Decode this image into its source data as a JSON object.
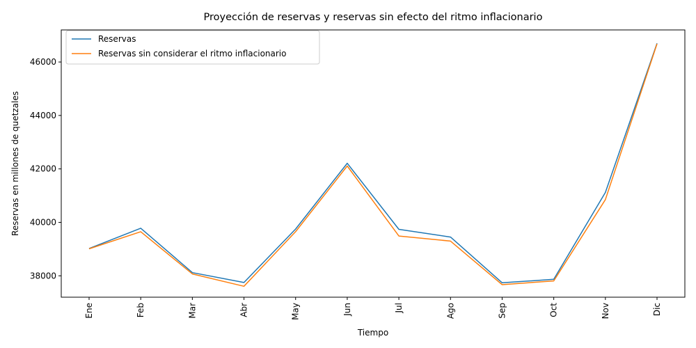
{
  "chart_data": {
    "type": "line",
    "title": "Proyección de reservas y reservas sin efecto del ritmo inflacionario",
    "xlabel": "Tiempo",
    "ylabel": "Reservas en millones de quetzales",
    "categories": [
      "Ene",
      "Feb",
      "Mar",
      "Abr",
      "May",
      "Jun",
      "Jul",
      "Ago",
      "Sep",
      "Oct",
      "Nov",
      "Dic"
    ],
    "yticks": [
      38000,
      40000,
      42000,
      44000,
      46000
    ],
    "ylim": [
      37200,
      47200
    ],
    "grid": false,
    "legend_position": "upper-left",
    "series": [
      {
        "name": "Reservas",
        "color": "#1f77b4",
        "values": [
          39020,
          39780,
          38120,
          37750,
          39750,
          42210,
          39740,
          39450,
          37740,
          37870,
          41120,
          46700
        ]
      },
      {
        "name": "Reservas sin considerar el ritmo inflacionario",
        "color": "#ff7f0e",
        "values": [
          39010,
          39650,
          38070,
          37610,
          39650,
          42110,
          39490,
          39300,
          37670,
          37810,
          40850,
          46680
        ]
      }
    ]
  }
}
